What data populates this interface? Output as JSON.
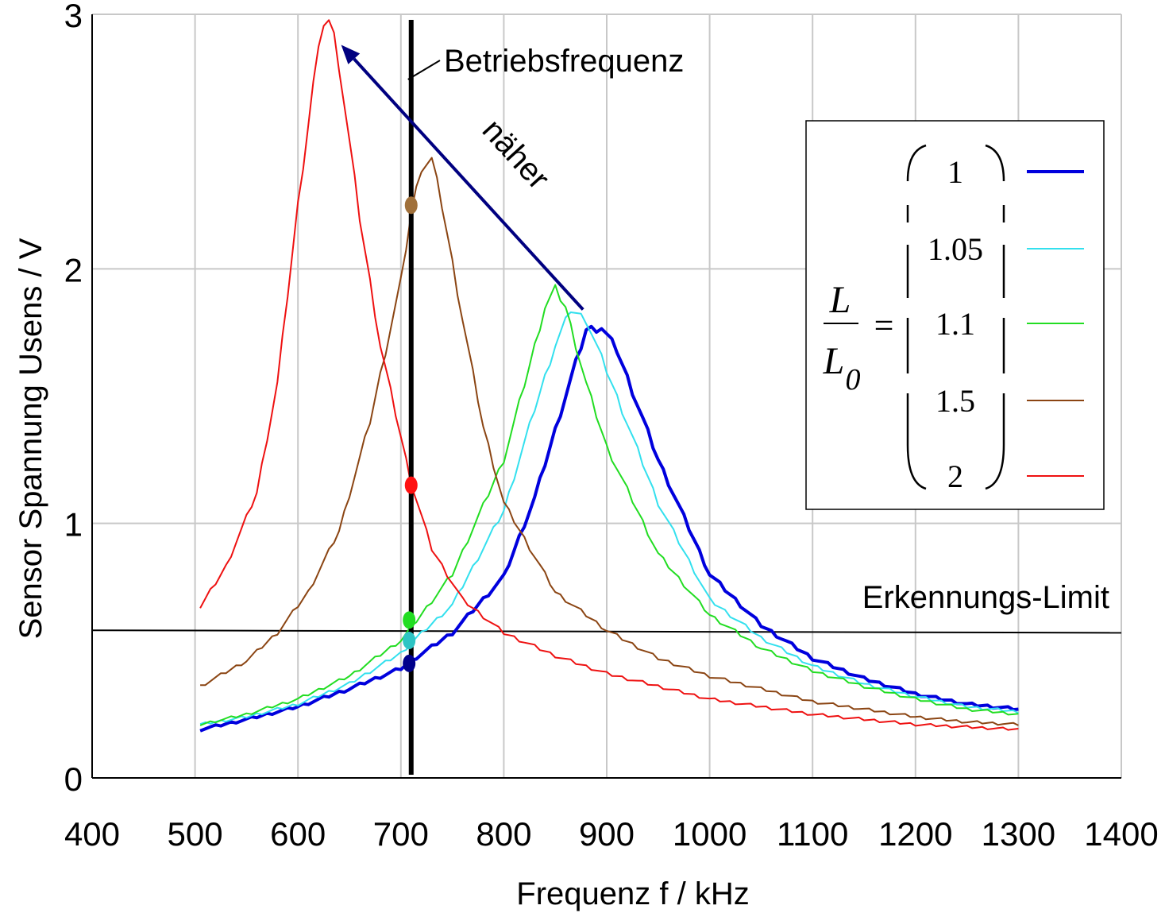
{
  "chart_data": {
    "type": "line",
    "title": "",
    "xlabel": "Frequenz f / kHz",
    "ylabel": "Sensor Spannung Usens / V",
    "xlim": [
      400,
      1400
    ],
    "ylim": [
      0,
      3
    ],
    "x_ticks": [
      "400",
      "500",
      "600",
      "700",
      "800",
      "900",
      "1000",
      "1100",
      "1200",
      "1300",
      "1400"
    ],
    "y_ticks": [
      "0",
      "1",
      "2",
      "3"
    ],
    "grid": true,
    "legend": {
      "placement": "top-right",
      "lhs_num": "L",
      "lhs_den": "L",
      "lhs_den_sub": "0",
      "eq": "=",
      "entries": [
        "1",
        "1.05",
        "1.1",
        "1.5",
        "2"
      ]
    },
    "operating_frequency": {
      "label": "Betriebsfrequenz",
      "x": 710
    },
    "detection_limit": {
      "label": "Erkennungs-Limit",
      "y_start": 0.58,
      "y_end": 0.57
    },
    "arrow_label": "näher",
    "arrow": {
      "from": [
        877,
        1.84
      ],
      "to": [
        642,
        2.88
      ]
    },
    "colors": {
      "1": "#0000dd",
      "1.05": "#33e0ee",
      "1.1": "#22dd22",
      "1.5": "#8b4513",
      "2": "#ee1111",
      "arrow": "#000080",
      "marker_1": "#00008b",
      "marker_1.05": "#2ec4c4",
      "marker_1.1": "#22dd22",
      "marker_1.5": "#a0703a",
      "marker_2": "#ff1111"
    },
    "series": [
      {
        "name": "1",
        "x": [
          505,
          550,
          600,
          650,
          700,
          710,
          750,
          800,
          830,
          860,
          880,
          895,
          910,
          950,
          1000,
          1050,
          1100,
          1150,
          1200,
          1250,
          1300
        ],
        "y": [
          0.19,
          0.23,
          0.28,
          0.35,
          0.43,
          0.46,
          0.57,
          0.79,
          1.1,
          1.5,
          1.76,
          1.77,
          1.68,
          1.25,
          0.8,
          0.6,
          0.47,
          0.39,
          0.33,
          0.29,
          0.27
        ]
      },
      {
        "name": "1.05",
        "x": [
          505,
          550,
          600,
          650,
          700,
          710,
          750,
          800,
          830,
          850,
          865,
          880,
          900,
          950,
          1000,
          1050,
          1100,
          1150,
          1200,
          1250,
          1300
        ],
        "y": [
          0.21,
          0.24,
          0.29,
          0.37,
          0.49,
          0.53,
          0.68,
          1.05,
          1.45,
          1.7,
          1.84,
          1.8,
          1.6,
          1.08,
          0.7,
          0.55,
          0.44,
          0.37,
          0.32,
          0.28,
          0.26
        ]
      },
      {
        "name": "1.1",
        "x": [
          505,
          550,
          600,
          650,
          700,
          710,
          750,
          800,
          825,
          840,
          850,
          860,
          880,
          900,
          950,
          1000,
          1050,
          1100,
          1150,
          1200,
          1250,
          1300
        ],
        "y": [
          0.21,
          0.25,
          0.31,
          0.4,
          0.54,
          0.59,
          0.8,
          1.25,
          1.62,
          1.85,
          1.92,
          1.85,
          1.55,
          1.3,
          0.88,
          0.64,
          0.51,
          0.42,
          0.36,
          0.31,
          0.27,
          0.25
        ]
      },
      {
        "name": "1.5",
        "x": [
          505,
          550,
          580,
          610,
          640,
          670,
          700,
          710,
          720,
          730,
          740,
          760,
          780,
          800,
          850,
          900,
          950,
          1000,
          1050,
          1100,
          1150,
          1200,
          1250,
          1300
        ],
        "y": [
          0.36,
          0.46,
          0.57,
          0.73,
          0.97,
          1.4,
          1.95,
          2.22,
          2.4,
          2.43,
          2.25,
          1.8,
          1.38,
          1.08,
          0.73,
          0.58,
          0.47,
          0.4,
          0.35,
          0.3,
          0.27,
          0.24,
          0.22,
          0.21
        ]
      },
      {
        "name": "2",
        "x": [
          505,
          530,
          560,
          580,
          600,
          615,
          625,
          632,
          640,
          650,
          660,
          680,
          700,
          710,
          730,
          760,
          800,
          850,
          900,
          950,
          1000,
          1050,
          1100,
          1150,
          1200,
          1250,
          1300
        ],
        "y": [
          0.67,
          0.83,
          1.12,
          1.55,
          2.25,
          2.73,
          2.97,
          2.98,
          2.8,
          2.5,
          2.2,
          1.7,
          1.34,
          1.16,
          0.9,
          0.7,
          0.57,
          0.48,
          0.41,
          0.36,
          0.31,
          0.28,
          0.25,
          0.23,
          0.21,
          0.2,
          0.19
        ]
      }
    ],
    "markers": [
      {
        "series": "1",
        "x": 708,
        "y": 0.45
      },
      {
        "series": "1.05",
        "x": 708,
        "y": 0.54
      },
      {
        "series": "1.1",
        "x": 708,
        "y": 0.62
      },
      {
        "series": "1.5",
        "x": 710,
        "y": 2.25
      },
      {
        "series": "2",
        "x": 710,
        "y": 1.15
      }
    ]
  }
}
